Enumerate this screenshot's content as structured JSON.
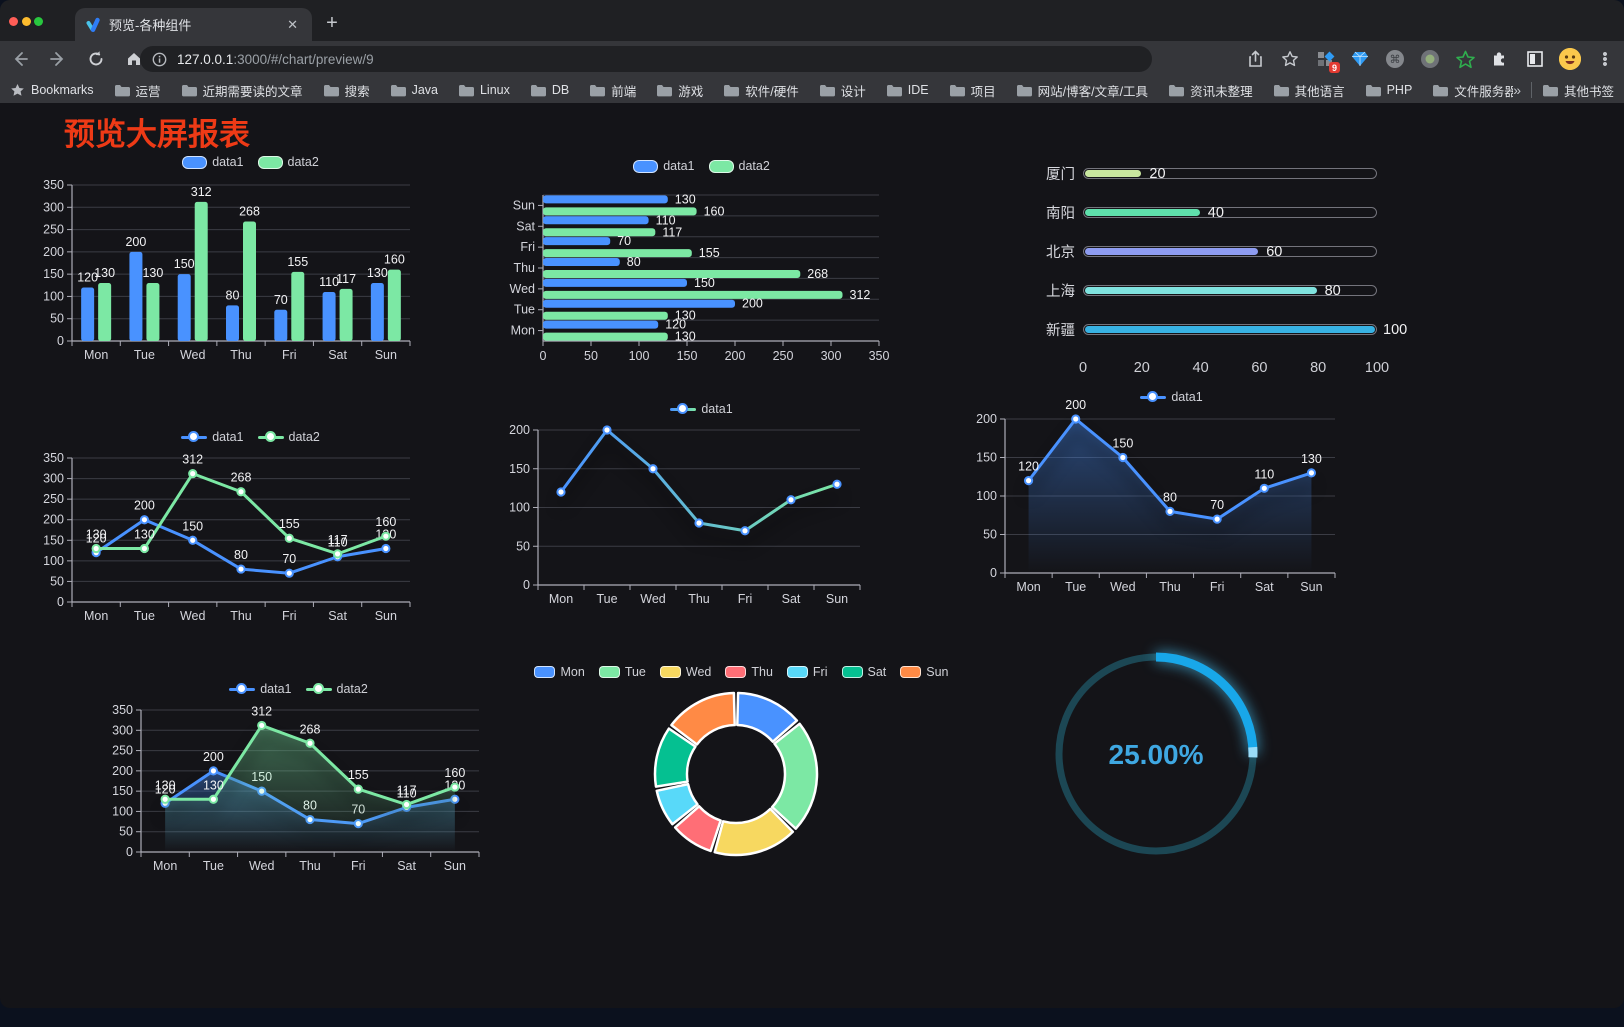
{
  "browser": {
    "traffic_lights": [
      "#ff5e57",
      "#fdbc2e",
      "#28c73f"
    ],
    "tab_title": "预览-各种组件",
    "tab_close": "✕",
    "new_tab_button": "+",
    "url": {
      "host": "127.0.0.1",
      "rest": ":3000/#/chart/preview/9"
    },
    "bookmarks_label": "Bookmarks",
    "bookmark_folders": [
      "运营",
      "近期需要读的文章",
      "搜索",
      "Java",
      "Linux",
      "DB",
      "前端",
      "游戏",
      "软件/硬件",
      "设计",
      "IDE",
      "项目",
      "网站/博客/文章/工具",
      "资讯未整理",
      "其他语言",
      "PHP",
      "文件服务器"
    ],
    "bookmarks_overflow": "»",
    "other_bookmarks": "其他书签",
    "extension_badge": "9"
  },
  "page": {
    "title": "预览大屏报表"
  },
  "chart_style": {
    "axis_label": "#d4d5dc",
    "axis_line": "#aeaeb8",
    "grid_line": "#3b3c44",
    "value_label": "#f2f2f4",
    "legend_text": "#d0d1d7",
    "background": "#141418"
  },
  "chart_data": [
    {
      "id": "bar-vertical",
      "type": "bar",
      "categories": [
        "Mon",
        "Tue",
        "Wed",
        "Thu",
        "Fri",
        "Sat",
        "Sun"
      ],
      "series": [
        {
          "name": "data1",
          "color": "#4992ff",
          "values": [
            120,
            200,
            150,
            80,
            70,
            110,
            130
          ]
        },
        {
          "name": "data2",
          "color": "#7ce8a4",
          "values": [
            130,
            130,
            312,
            268,
            155,
            117,
            160
          ]
        }
      ],
      "ylim": [
        0,
        350
      ],
      "yticks": [
        0,
        50,
        100,
        150,
        200,
        250,
        300,
        350
      ],
      "value_labels": true,
      "legend_position": "top",
      "grid": true
    },
    {
      "id": "bar-horizontal",
      "type": "bar-horizontal",
      "categories": [
        "Mon",
        "Tue",
        "Wed",
        "Thu",
        "Fri",
        "Sat",
        "Sun"
      ],
      "display_order_top_to_bottom": [
        "Sun",
        "Sat",
        "Fri",
        "Thu",
        "Wed",
        "Tue",
        "Mon"
      ],
      "series": [
        {
          "name": "data1",
          "color": "#4992ff",
          "values": [
            120,
            200,
            150,
            80,
            70,
            110,
            130
          ]
        },
        {
          "name": "data2",
          "color": "#7ce8a4",
          "values": [
            130,
            130,
            312,
            268,
            155,
            117,
            160
          ]
        }
      ],
      "xlim": [
        0,
        350
      ],
      "xticks": [
        0,
        50,
        100,
        150,
        200,
        250,
        300,
        350
      ],
      "value_labels": true,
      "legend_position": "top",
      "grid": true
    },
    {
      "id": "progress-bars",
      "type": "progress",
      "rows": [
        {
          "label": "厦门",
          "value": 20,
          "color": "#c9e79f"
        },
        {
          "label": "南阳",
          "value": 40,
          "color": "#5fe0ac"
        },
        {
          "label": "北京",
          "value": 60,
          "color": "#8e9cf1"
        },
        {
          "label": "上海",
          "value": 80,
          "color": "#80e3df"
        },
        {
          "label": "新疆",
          "value": 100,
          "color": "#38b2e3"
        }
      ],
      "max": 100,
      "axis_ticks": [
        0,
        20,
        40,
        60,
        80,
        100
      ]
    },
    {
      "id": "line-two-series",
      "type": "line",
      "categories": [
        "Mon",
        "Tue",
        "Wed",
        "Thu",
        "Fri",
        "Sat",
        "Sun"
      ],
      "series": [
        {
          "name": "data1",
          "color": "#4992ff",
          "values": [
            120,
            200,
            150,
            80,
            70,
            110,
            130
          ]
        },
        {
          "name": "data2",
          "color": "#7ce8a4",
          "values": [
            130,
            130,
            312,
            268,
            155,
            117,
            160
          ]
        }
      ],
      "ylim": [
        0,
        350
      ],
      "yticks": [
        0,
        50,
        100,
        150,
        200,
        250,
        300,
        350
      ],
      "value_labels": true,
      "legend_position": "top",
      "grid": true
    },
    {
      "id": "line-gradient",
      "type": "line",
      "categories": [
        "Mon",
        "Tue",
        "Wed",
        "Thu",
        "Fri",
        "Sat",
        "Sun"
      ],
      "series": [
        {
          "name": "data1",
          "gradient": [
            "#4992ff",
            "#7ce8a4"
          ],
          "values": [
            120,
            200,
            150,
            80,
            70,
            110,
            130
          ],
          "shadow": true
        }
      ],
      "ylim": [
        0,
        200
      ],
      "yticks": [
        0,
        50,
        100,
        150,
        200
      ],
      "value_labels": false,
      "legend_position": "top",
      "grid": true
    },
    {
      "id": "area-single",
      "type": "area",
      "categories": [
        "Mon",
        "Tue",
        "Wed",
        "Thu",
        "Fri",
        "Sat",
        "Sun"
      ],
      "series": [
        {
          "name": "data1",
          "color": "#4992ff",
          "values": [
            120,
            200,
            150,
            80,
            70,
            110,
            130
          ],
          "area": true,
          "shadow": true
        }
      ],
      "ylim": [
        0,
        200
      ],
      "yticks": [
        0,
        50,
        100,
        150,
        200
      ],
      "value_labels": true,
      "legend_position": "top",
      "grid": true
    },
    {
      "id": "area-two-series",
      "type": "area",
      "categories": [
        "Mon",
        "Tue",
        "Wed",
        "Thu",
        "Fri",
        "Sat",
        "Sun"
      ],
      "series": [
        {
          "name": "data1",
          "color": "#4992ff",
          "values": [
            120,
            200,
            150,
            80,
            70,
            110,
            130
          ],
          "area": true,
          "shadow": true
        },
        {
          "name": "data2",
          "color": "#7ce8a4",
          "values": [
            130,
            130,
            312,
            268,
            155,
            117,
            160
          ],
          "area": true,
          "shadow": true
        }
      ],
      "ylim": [
        0,
        350
      ],
      "yticks": [
        0,
        50,
        100,
        150,
        200,
        250,
        300,
        350
      ],
      "value_labels": true,
      "legend_position": "top",
      "grid": true
    },
    {
      "id": "donut",
      "type": "pie",
      "labels": [
        "Mon",
        "Tue",
        "Wed",
        "Thu",
        "Fri",
        "Sat",
        "Sun"
      ],
      "values": [
        120,
        200,
        150,
        80,
        70,
        110,
        130
      ],
      "colors": [
        "#4992ff",
        "#7ce8a4",
        "#f7d860",
        "#ff6e76",
        "#58d9f9",
        "#05c091",
        "#ff8a45"
      ],
      "inner_radius_ratio": 0.6,
      "border_color": "#ffffff",
      "legend_position": "top"
    },
    {
      "id": "gauge",
      "type": "gauge",
      "value": 25,
      "display": "25.00%",
      "track_color": "#1c4754",
      "arc_color": "#18a7e9",
      "cap_color": "#9adcf8",
      "text_color": "#3fa8e2"
    }
  ]
}
